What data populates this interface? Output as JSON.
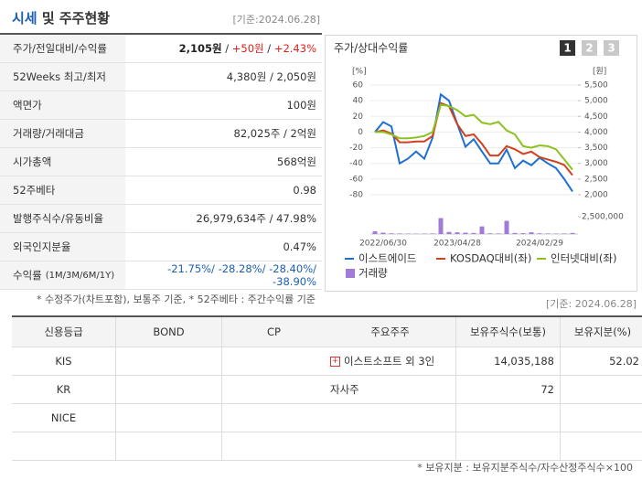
{
  "header": {
    "title_main": "시세",
    "title_rest": "및 주주현황",
    "date": "[기준:2024.06.28]"
  },
  "quote_table": {
    "rows": [
      {
        "label": "주가/전일대비/수익률",
        "value_parts": [
          {
            "text": "2,105원",
            "style": "bold"
          },
          {
            "text": " / "
          },
          {
            "text": "+50원",
            "style": "up"
          },
          {
            "text": " / "
          },
          {
            "text": "+2.43%",
            "style": "up"
          }
        ]
      },
      {
        "label": "52Weeks 최고/최저",
        "value_parts": [
          {
            "text": "4,380원 / 2,050원"
          }
        ]
      },
      {
        "label": "액면가",
        "value_parts": [
          {
            "text": "100원"
          }
        ]
      },
      {
        "label": "거래량/거래대금",
        "value_parts": [
          {
            "text": "82,025주 / 2억원"
          }
        ]
      },
      {
        "label": "시가총액",
        "value_parts": [
          {
            "text": "568억원"
          }
        ]
      },
      {
        "label": "52주베타",
        "value_parts": [
          {
            "text": "0.98"
          }
        ]
      },
      {
        "label": "발행주식수/유동비율",
        "value_parts": [
          {
            "text": "26,979,634주 / 47.98%"
          }
        ]
      },
      {
        "label": "외국인지분율",
        "value_parts": [
          {
            "text": "0.47%"
          }
        ]
      },
      {
        "label": "수익률",
        "label_sub": "(1M/3M/6M/1Y)",
        "value_parts": [
          {
            "text": "-21.75%/ -28.28%/ -28.40%/ -38.90%",
            "style": "down"
          }
        ]
      }
    ],
    "footnote": "* 수정주가(차트포함), 보통주 기준, * 52주베타 : 주간수익률 기준"
  },
  "chart_date": "[기준: 2024.06.28]",
  "chart_data": {
    "type": "line",
    "title": "주가/상대수익률",
    "tabs": [
      "1",
      "2",
      "3"
    ],
    "ylabel": "[%]",
    "y2label": "[원]",
    "categories": [
      null,
      "2022/06/30",
      null,
      null,
      null,
      null,
      null,
      null,
      null,
      null,
      "2023/04/28",
      null,
      null,
      null,
      null,
      null,
      null,
      null,
      null,
      null,
      "2024/02/29",
      null,
      null,
      null,
      null
    ],
    "series": [
      {
        "name": "이스트에이드",
        "color": "#1f6fd1",
        "axis": "y2",
        "values": [
          4000,
          4320,
          4180,
          3000,
          3150,
          3380,
          3150,
          3820,
          5200,
          5000,
          4260,
          3530,
          3770,
          3380,
          3000,
          3000,
          3440,
          2850,
          3090,
          2940,
          3180,
          3000,
          2850,
          2500,
          2105
        ]
      },
      {
        "name": "KOSDAQ대비(좌)",
        "color": "#d2401e",
        "values": [
          0,
          2,
          -2,
          -13,
          -13,
          -12,
          -12,
          -5,
          37,
          33,
          10,
          -5,
          -3,
          -15,
          -30,
          -30,
          -18,
          -22,
          -28,
          -25,
          -32,
          -35,
          -38,
          -42,
          -55
        ]
      },
      {
        "name": "인터넷대비(좌)",
        "color": "#8cc21f",
        "values": [
          0,
          0,
          -3,
          -8,
          -8,
          -7,
          -5,
          0,
          35,
          33,
          28,
          20,
          22,
          12,
          10,
          13,
          2,
          -3,
          -18,
          -20,
          -17,
          -18,
          -22,
          -35,
          -48
        ]
      },
      {
        "name": "거래량",
        "color": "#a07cd8",
        "axis": "volume",
        "kind": "bar",
        "values": [
          400000,
          200000,
          100000,
          80000,
          60000,
          50000,
          60000,
          80000,
          2300000,
          300000,
          250000,
          200000,
          150000,
          1100000,
          100000,
          80000,
          1900000,
          150000,
          120000,
          250000,
          100000,
          80000,
          60000,
          80000,
          150000
        ]
      }
    ],
    "ylim": [
      -80,
      60
    ],
    "yticks": [
      60,
      40,
      20,
      0,
      -20,
      -40,
      -60,
      -80
    ],
    "y2lim": [
      2000,
      5500
    ],
    "y2ticks": [
      {
        "value": 5500,
        "label": "5,500"
      },
      {
        "value": 5000,
        "label": "5,000"
      },
      {
        "value": 4500,
        "label": "4,500"
      },
      {
        "value": 4000,
        "label": "4,000"
      },
      {
        "value": 3500,
        "label": "3,500"
      },
      {
        "value": 3000,
        "label": "3,000"
      },
      {
        "value": 2500,
        "label": "2,500"
      },
      {
        "value": 2000,
        "label": "2,000"
      }
    ],
    "volume_lim": [
      0,
      2500000
    ],
    "volume_ticks": [
      {
        "value": 2500000,
        "label": "2,500,000"
      }
    ],
    "grid": true
  },
  "credit_table": {
    "headers": [
      "신용등급",
      "BOND",
      "CP"
    ],
    "rows": [
      [
        "KIS"
      ],
      [
        "KR"
      ],
      [
        "NICE"
      ]
    ]
  },
  "holder_table": {
    "headers": [
      "주요주주",
      "보유주식수(보통)",
      "보유지분(%)"
    ],
    "rows": [
      [
        "이스트소프트 외 3인",
        "14,035,188",
        "52.02"
      ],
      [
        "자사주",
        "72"
      ]
    ],
    "footnote": "* 보유지분 : 보유지분주식수/자수산정주식수×100"
  }
}
